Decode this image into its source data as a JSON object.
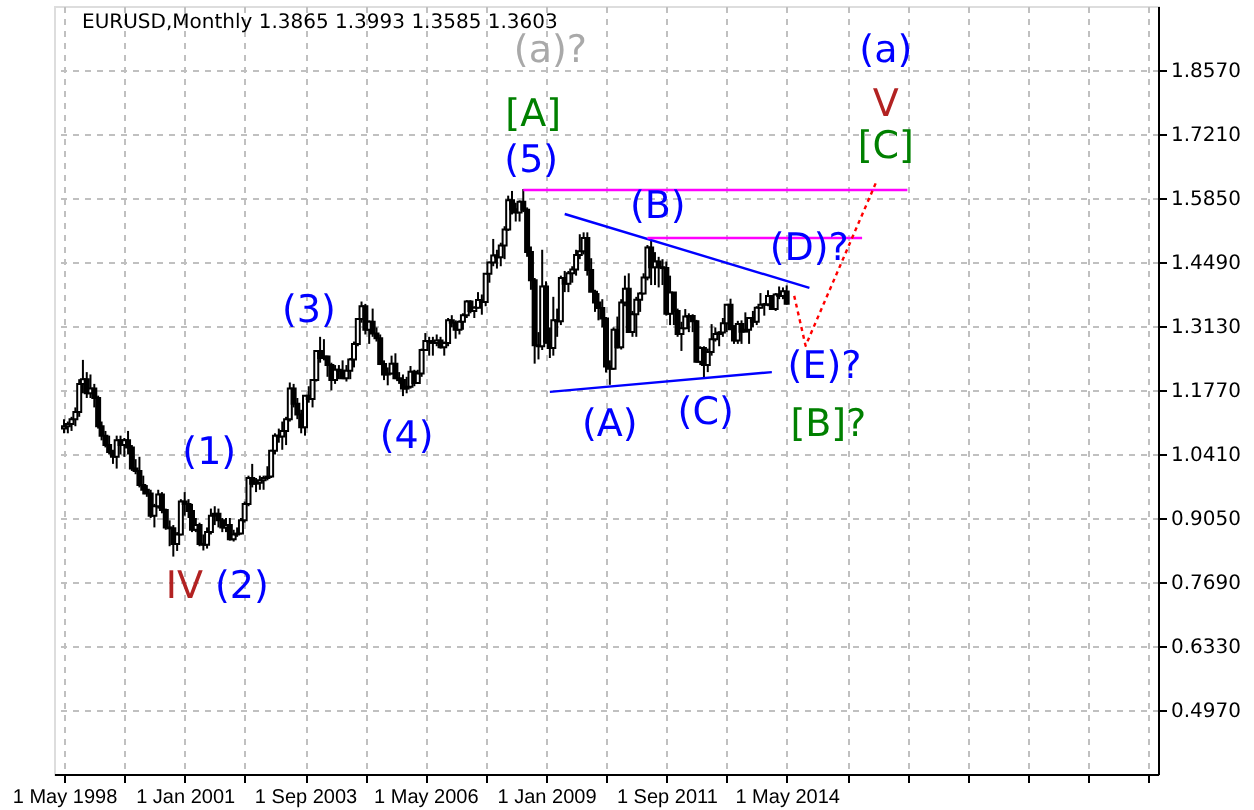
{
  "chart_data": {
    "type": "candlestick",
    "title": "EURUSD,Monthly  1.3865 1.3993 1.3585 1.3603",
    "x": [
      "1998-05",
      "1998-06",
      "1998-07",
      "1998-08",
      "1998-09",
      "1998-10",
      "1998-11",
      "1998-12",
      "1999-01",
      "1999-02",
      "1999-03",
      "1999-04",
      "1999-05",
      "1999-06",
      "1999-07",
      "1999-08",
      "1999-09",
      "1999-10",
      "1999-11",
      "1999-12",
      "2000-01",
      "2000-02",
      "2000-03",
      "2000-04",
      "2000-05",
      "2000-06",
      "2000-07",
      "2000-08",
      "2000-09",
      "2000-10",
      "2000-11",
      "2000-12",
      "2001-01",
      "2001-02",
      "2001-03",
      "2001-04",
      "2001-05",
      "2001-06",
      "2001-07",
      "2001-08",
      "2001-09",
      "2001-10",
      "2001-11",
      "2001-12",
      "2002-01",
      "2002-02",
      "2002-03",
      "2002-04",
      "2002-05",
      "2002-06",
      "2002-07",
      "2002-08",
      "2002-09",
      "2002-10",
      "2002-11",
      "2002-12",
      "2003-01",
      "2003-02",
      "2003-03",
      "2003-04",
      "2003-05",
      "2003-06",
      "2003-07",
      "2003-08",
      "2003-09",
      "2003-10",
      "2003-11",
      "2003-12",
      "2004-01",
      "2004-02",
      "2004-03",
      "2004-04",
      "2004-05",
      "2004-06",
      "2004-07",
      "2004-08",
      "2004-09",
      "2004-10",
      "2004-11",
      "2004-12",
      "2005-01",
      "2005-02",
      "2005-03",
      "2005-04",
      "2005-05",
      "2005-06",
      "2005-07",
      "2005-08",
      "2005-09",
      "2005-10",
      "2005-11",
      "2005-12",
      "2006-01",
      "2006-02",
      "2006-03",
      "2006-04",
      "2006-05",
      "2006-06",
      "2006-07",
      "2006-08",
      "2006-09",
      "2006-10",
      "2006-11",
      "2006-12",
      "2007-01",
      "2007-02",
      "2007-03",
      "2007-04",
      "2007-05",
      "2007-06",
      "2007-07",
      "2007-08",
      "2007-09",
      "2007-10",
      "2007-11",
      "2007-12",
      "2008-01",
      "2008-02",
      "2008-03",
      "2008-04",
      "2008-05",
      "2008-06",
      "2008-07",
      "2008-08",
      "2008-09",
      "2008-10",
      "2008-11",
      "2008-12",
      "2009-01",
      "2009-02",
      "2009-03",
      "2009-04",
      "2009-05",
      "2009-06",
      "2009-07",
      "2009-08",
      "2009-09",
      "2009-10",
      "2009-11",
      "2009-12",
      "2010-01",
      "2010-02",
      "2010-03",
      "2010-04",
      "2010-05",
      "2010-06",
      "2010-07",
      "2010-08",
      "2010-09",
      "2010-10",
      "2010-11",
      "2010-12",
      "2011-01",
      "2011-02",
      "2011-03",
      "2011-04",
      "2011-05",
      "2011-06",
      "2011-07",
      "2011-08",
      "2011-09",
      "2011-10",
      "2011-11",
      "2011-12",
      "2012-01",
      "2012-02",
      "2012-03",
      "2012-04",
      "2012-05",
      "2012-06",
      "2012-07",
      "2012-08",
      "2012-09",
      "2012-10",
      "2012-11",
      "2012-12",
      "2013-01",
      "2013-02",
      "2013-03",
      "2013-04",
      "2013-05",
      "2013-06",
      "2013-07",
      "2013-08",
      "2013-09",
      "2013-10",
      "2013-11",
      "2013-12",
      "2014-01",
      "2014-02",
      "2014-03",
      "2014-04",
      "2014-05"
    ],
    "ohlc": [
      [
        1.095,
        1.115,
        1.085,
        1.1
      ],
      [
        1.1,
        1.11,
        1.085,
        1.105
      ],
      [
        1.105,
        1.12,
        1.09,
        1.115
      ],
      [
        1.115,
        1.14,
        1.1,
        1.13
      ],
      [
        1.13,
        1.2,
        1.12,
        1.19
      ],
      [
        1.19,
        1.241,
        1.17,
        1.2
      ],
      [
        1.2,
        1.215,
        1.16,
        1.17
      ],
      [
        1.17,
        1.21,
        1.16,
        1.18
      ],
      [
        1.18,
        1.19,
        1.14,
        1.16
      ],
      [
        1.16,
        1.165,
        1.095,
        1.1
      ],
      [
        1.1,
        1.11,
        1.07,
        1.08
      ],
      [
        1.08,
        1.09,
        1.055,
        1.06
      ],
      [
        1.06,
        1.08,
        1.04,
        1.045
      ],
      [
        1.045,
        1.05,
        1.02,
        1.035
      ],
      [
        1.035,
        1.08,
        1.01,
        1.07
      ],
      [
        1.07,
        1.08,
        1.04,
        1.06
      ],
      [
        1.06,
        1.075,
        1.035,
        1.07
      ],
      [
        1.07,
        1.09,
        1.04,
        1.055
      ],
      [
        1.055,
        1.06,
        1.005,
        1.01
      ],
      [
        1.01,
        1.03,
        0.998,
        1.005
      ],
      [
        1.005,
        1.035,
        0.97,
        0.975
      ],
      [
        0.975,
        0.995,
        0.955,
        0.965
      ],
      [
        0.965,
        0.975,
        0.95,
        0.957
      ],
      [
        0.957,
        0.965,
        0.905,
        0.91
      ],
      [
        0.91,
        0.935,
        0.885,
        0.93
      ],
      [
        0.93,
        0.965,
        0.925,
        0.955
      ],
      [
        0.955,
        0.96,
        0.915,
        0.922
      ],
      [
        0.922,
        0.925,
        0.88,
        0.885
      ],
      [
        0.885,
        0.9,
        0.845,
        0.883
      ],
      [
        0.883,
        0.89,
        0.823,
        0.85
      ],
      [
        0.85,
        0.875,
        0.835,
        0.87
      ],
      [
        0.87,
        0.945,
        0.868,
        0.94
      ],
      [
        0.94,
        0.96,
        0.91,
        0.935
      ],
      [
        0.935,
        0.945,
        0.905,
        0.92
      ],
      [
        0.92,
        0.935,
        0.875,
        0.88
      ],
      [
        0.88,
        0.905,
        0.875,
        0.89
      ],
      [
        0.89,
        0.895,
        0.845,
        0.85
      ],
      [
        0.85,
        0.87,
        0.836,
        0.848
      ],
      [
        0.848,
        0.885,
        0.84,
        0.875
      ],
      [
        0.875,
        0.925,
        0.87,
        0.91
      ],
      [
        0.91,
        0.93,
        0.89,
        0.914
      ],
      [
        0.914,
        0.925,
        0.885,
        0.9
      ],
      [
        0.9,
        0.905,
        0.875,
        0.885
      ],
      [
        0.885,
        0.905,
        0.875,
        0.89
      ],
      [
        0.89,
        0.905,
        0.857,
        0.86
      ],
      [
        0.86,
        0.88,
        0.855,
        0.87
      ],
      [
        0.87,
        0.885,
        0.865,
        0.872
      ],
      [
        0.872,
        0.905,
        0.87,
        0.9
      ],
      [
        0.9,
        0.94,
        0.895,
        0.935
      ],
      [
        0.935,
        0.995,
        0.93,
        0.99
      ],
      [
        0.99,
        1.02,
        0.97,
        0.978
      ],
      [
        0.978,
        0.99,
        0.96,
        0.98
      ],
      [
        0.98,
        0.995,
        0.965,
        0.985
      ],
      [
        0.985,
        0.995,
        0.965,
        0.99
      ],
      [
        0.99,
        1.015,
        0.985,
        0.993
      ],
      [
        0.993,
        1.05,
        0.99,
        1.048
      ],
      [
        1.048,
        1.085,
        1.04,
        1.08
      ],
      [
        1.08,
        1.095,
        1.065,
        1.078
      ],
      [
        1.078,
        1.11,
        1.05,
        1.09
      ],
      [
        1.09,
        1.12,
        1.06,
        1.115
      ],
      [
        1.115,
        1.193,
        1.11,
        1.18
      ],
      [
        1.18,
        1.19,
        1.14,
        1.148
      ],
      [
        1.148,
        1.16,
        1.115,
        1.125
      ],
      [
        1.125,
        1.135,
        1.085,
        1.098
      ],
      [
        1.098,
        1.165,
        1.08,
        1.165
      ],
      [
        1.165,
        1.185,
        1.15,
        1.158
      ],
      [
        1.158,
        1.2,
        1.14,
        1.198
      ],
      [
        1.198,
        1.262,
        1.195,
        1.26
      ],
      [
        1.26,
        1.29,
        1.235,
        1.245
      ],
      [
        1.245,
        1.285,
        1.24,
        1.248
      ],
      [
        1.248,
        1.25,
        1.205,
        1.23
      ],
      [
        1.23,
        1.235,
        1.176,
        1.198
      ],
      [
        1.198,
        1.23,
        1.19,
        1.22
      ],
      [
        1.22,
        1.23,
        1.2,
        1.218
      ],
      [
        1.218,
        1.24,
        1.2,
        1.202
      ],
      [
        1.202,
        1.23,
        1.195,
        1.218
      ],
      [
        1.218,
        1.245,
        1.2,
        1.242
      ],
      [
        1.242,
        1.28,
        1.225,
        1.275
      ],
      [
        1.275,
        1.33,
        1.27,
        1.328
      ],
      [
        1.328,
        1.365,
        1.32,
        1.355
      ],
      [
        1.355,
        1.36,
        1.295,
        1.305
      ],
      [
        1.305,
        1.325,
        1.275,
        1.322
      ],
      [
        1.322,
        1.35,
        1.29,
        1.297
      ],
      [
        1.297,
        1.31,
        1.28,
        1.287
      ],
      [
        1.287,
        1.295,
        1.23,
        1.232
      ],
      [
        1.232,
        1.24,
        1.198,
        1.21
      ],
      [
        1.21,
        1.225,
        1.187,
        1.212
      ],
      [
        1.212,
        1.25,
        1.21,
        1.233
      ],
      [
        1.233,
        1.255,
        1.2,
        1.202
      ],
      [
        1.202,
        1.215,
        1.19,
        1.198
      ],
      [
        1.198,
        1.21,
        1.164,
        1.18
      ],
      [
        1.18,
        1.205,
        1.17,
        1.184
      ],
      [
        1.184,
        1.228,
        1.18,
        1.216
      ],
      [
        1.216,
        1.22,
        1.185,
        1.192
      ],
      [
        1.192,
        1.22,
        1.19,
        1.212
      ],
      [
        1.212,
        1.265,
        1.205,
        1.262
      ],
      [
        1.262,
        1.298,
        1.26,
        1.281
      ],
      [
        1.281,
        1.29,
        1.25,
        1.28
      ],
      [
        1.28,
        1.29,
        1.25,
        1.277
      ],
      [
        1.277,
        1.295,
        1.27,
        1.282
      ],
      [
        1.282,
        1.29,
        1.265,
        1.268
      ],
      [
        1.268,
        1.28,
        1.25,
        1.277
      ],
      [
        1.277,
        1.33,
        1.27,
        1.325
      ],
      [
        1.325,
        1.336,
        1.31,
        1.32
      ],
      [
        1.32,
        1.325,
        1.286,
        1.305
      ],
      [
        1.305,
        1.325,
        1.295,
        1.322
      ],
      [
        1.322,
        1.34,
        1.305,
        1.336
      ],
      [
        1.336,
        1.368,
        1.33,
        1.365
      ],
      [
        1.365,
        1.368,
        1.34,
        1.345
      ],
      [
        1.345,
        1.355,
        1.33,
        1.352
      ],
      [
        1.352,
        1.385,
        1.35,
        1.368
      ],
      [
        1.368,
        1.38,
        1.337,
        1.364
      ],
      [
        1.364,
        1.425,
        1.355,
        1.424
      ],
      [
        1.424,
        1.45,
        1.405,
        1.448
      ],
      [
        1.448,
        1.498,
        1.44,
        1.463
      ],
      [
        1.463,
        1.475,
        1.435,
        1.459
      ],
      [
        1.459,
        1.49,
        1.44,
        1.484
      ],
      [
        1.484,
        1.525,
        1.455,
        1.518
      ],
      [
        1.518,
        1.59,
        1.515,
        1.58
      ],
      [
        1.58,
        1.6,
        1.55,
        1.561
      ],
      [
        1.561,
        1.575,
        1.535,
        1.554
      ],
      [
        1.554,
        1.58,
        1.535,
        1.577
      ],
      [
        1.577,
        1.604,
        1.555,
        1.56
      ],
      [
        1.56,
        1.565,
        1.46,
        1.47
      ],
      [
        1.47,
        1.482,
        1.39,
        1.41
      ],
      [
        1.41,
        1.415,
        1.233,
        1.272
      ],
      [
        1.272,
        1.3,
        1.242,
        1.27
      ],
      [
        1.27,
        1.475,
        1.262,
        1.397
      ],
      [
        1.397,
        1.408,
        1.275,
        1.28
      ],
      [
        1.28,
        1.31,
        1.245,
        1.266
      ],
      [
        1.266,
        1.375,
        1.25,
        1.325
      ],
      [
        1.325,
        1.35,
        1.29,
        1.323
      ],
      [
        1.323,
        1.42,
        1.315,
        1.415
      ],
      [
        1.415,
        1.43,
        1.385,
        1.403
      ],
      [
        1.403,
        1.43,
        1.385,
        1.425
      ],
      [
        1.425,
        1.44,
        1.405,
        1.433
      ],
      [
        1.433,
        1.475,
        1.42,
        1.464
      ],
      [
        1.464,
        1.508,
        1.455,
        1.472
      ],
      [
        1.472,
        1.512,
        1.465,
        1.5
      ],
      [
        1.5,
        1.512,
        1.42,
        1.432
      ],
      [
        1.432,
        1.457,
        1.385,
        1.386
      ],
      [
        1.386,
        1.39,
        1.343,
        1.363
      ],
      [
        1.363,
        1.383,
        1.325,
        1.351
      ],
      [
        1.351,
        1.37,
        1.31,
        1.329
      ],
      [
        1.329,
        1.332,
        1.214,
        1.227
      ],
      [
        1.227,
        1.24,
        1.188,
        1.222
      ],
      [
        1.222,
        1.31,
        1.22,
        1.305
      ],
      [
        1.305,
        1.333,
        1.265,
        1.268
      ],
      [
        1.268,
        1.37,
        1.263,
        1.363
      ],
      [
        1.363,
        1.42,
        1.355,
        1.392
      ],
      [
        1.392,
        1.425,
        1.3,
        1.3
      ],
      [
        1.3,
        1.345,
        1.29,
        1.338
      ],
      [
        1.338,
        1.375,
        1.29,
        1.369
      ],
      [
        1.369,
        1.385,
        1.343,
        1.382
      ],
      [
        1.382,
        1.425,
        1.38,
        1.416
      ],
      [
        1.416,
        1.485,
        1.41,
        1.48
      ],
      [
        1.48,
        1.494,
        1.4,
        1.438
      ],
      [
        1.438,
        1.47,
        1.4,
        1.45
      ],
      [
        1.45,
        1.46,
        1.395,
        1.438
      ],
      [
        1.438,
        1.455,
        1.4,
        1.436
      ],
      [
        1.436,
        1.45,
        1.335,
        1.339
      ],
      [
        1.339,
        1.42,
        1.315,
        1.384
      ],
      [
        1.384,
        1.385,
        1.315,
        1.345
      ],
      [
        1.345,
        1.35,
        1.29,
        1.296
      ],
      [
        1.296,
        1.322,
        1.26,
        1.308
      ],
      [
        1.308,
        1.349,
        1.306,
        1.333
      ],
      [
        1.333,
        1.34,
        1.3,
        1.334
      ],
      [
        1.334,
        1.338,
        1.3,
        1.323
      ],
      [
        1.323,
        1.326,
        1.235,
        1.237
      ],
      [
        1.237,
        1.27,
        1.23,
        1.266
      ],
      [
        1.266,
        1.27,
        1.204,
        1.23
      ],
      [
        1.23,
        1.265,
        1.215,
        1.258
      ],
      [
        1.258,
        1.317,
        1.25,
        1.285
      ],
      [
        1.285,
        1.31,
        1.28,
        1.296
      ],
      [
        1.296,
        1.302,
        1.27,
        1.299
      ],
      [
        1.299,
        1.33,
        1.29,
        1.319
      ],
      [
        1.319,
        1.36,
        1.3,
        1.358
      ],
      [
        1.358,
        1.371,
        1.305,
        1.306
      ],
      [
        1.306,
        1.315,
        1.275,
        1.282
      ],
      [
        1.282,
        1.324,
        1.275,
        1.317
      ],
      [
        1.317,
        1.325,
        1.275,
        1.301
      ],
      [
        1.301,
        1.342,
        1.3,
        1.305
      ],
      [
        1.305,
        1.33,
        1.275,
        1.33
      ],
      [
        1.33,
        1.345,
        1.31,
        1.322
      ],
      [
        1.322,
        1.355,
        1.315,
        1.352
      ],
      [
        1.352,
        1.383,
        1.35,
        1.358
      ],
      [
        1.358,
        1.362,
        1.335,
        1.359
      ],
      [
        1.359,
        1.389,
        1.355,
        1.377
      ],
      [
        1.377,
        1.378,
        1.348,
        1.349
      ],
      [
        1.349,
        1.383,
        1.345,
        1.38
      ],
      [
        1.38,
        1.397,
        1.37,
        1.377
      ],
      [
        1.377,
        1.395,
        1.37,
        1.387
      ],
      [
        1.3865,
        1.3993,
        1.3585,
        1.3603
      ]
    ],
    "series": [
      {
        "type": "line",
        "color": "#0000ff",
        "line_style": "solid",
        "x": [
          "2009-06",
          "2014-11"
        ],
        "values": [
          1.551,
          1.394
        ]
      },
      {
        "type": "line",
        "color": "#0000ff",
        "line_style": "solid",
        "x": [
          "2009-02",
          "2014-01"
        ],
        "values": [
          1.173,
          1.215
        ]
      },
      {
        "type": "line",
        "color": "#ff00ff",
        "line_style": "solid",
        "x": [
          "2008-07",
          "2017-01"
        ],
        "values": [
          1.602,
          1.602
        ]
      },
      {
        "type": "line",
        "color": "#ff00ff",
        "line_style": "solid",
        "x": [
          "2011-04",
          "2016-01"
        ],
        "values": [
          1.5,
          1.5
        ]
      },
      {
        "type": "line",
        "color": "#ff0000",
        "line_style": "dotted",
        "x": [
          "2014-07",
          "2014-10",
          "2016-05"
        ],
        "values": [
          1.377,
          1.271,
          1.623
        ]
      }
    ],
    "annotations": [
      "(a)?",
      "[A]",
      "(5)",
      "(3)",
      "(4)",
      "(1)",
      "IV",
      "(2)",
      "(A)",
      "(B)",
      "(C)",
      "(D)?",
      "(E)?",
      "[B]?",
      "(a)",
      "V",
      "[C]"
    ],
    "xlim": [
      "1998-05",
      "2022-05"
    ],
    "xticks": [
      {
        "value": "1998-05",
        "label": "1 May 1998"
      },
      {
        "value": "1999-09",
        "label": null
      },
      {
        "value": "2001-01",
        "label": "1 Jan 2001"
      },
      {
        "value": "2002-05",
        "label": null
      },
      {
        "value": "2003-09",
        "label": "1 Sep 2003"
      },
      {
        "value": "2005-01",
        "label": null
      },
      {
        "value": "2006-05",
        "label": "1 May 2006"
      },
      {
        "value": "2007-09",
        "label": null
      },
      {
        "value": "2009-01",
        "label": "1 Jan 2009"
      },
      {
        "value": "2010-05",
        "label": null
      },
      {
        "value": "2011-09",
        "label": "1 Sep 2011"
      },
      {
        "value": "2013-01",
        "label": null
      },
      {
        "value": "2014-05",
        "label": "1 May 2014"
      },
      {
        "value": "2015-09",
        "label": null
      },
      {
        "value": "2017-01",
        "label": null
      },
      {
        "value": "2018-05",
        "label": null
      },
      {
        "value": "2019-09",
        "label": null
      },
      {
        "value": "2021-01",
        "label": null
      },
      {
        "value": "2022-05",
        "label": null
      }
    ],
    "ylim": [
      0.361,
      1.993
    ],
    "yticks": [
      {
        "value": 0.497,
        "label": "0.4970"
      },
      {
        "value": 0.633,
        "label": "0.6330"
      },
      {
        "value": 0.769,
        "label": "0.7690"
      },
      {
        "value": 0.905,
        "label": "0.9050"
      },
      {
        "value": 1.041,
        "label": "1.0410"
      },
      {
        "value": 1.177,
        "label": "1.1770"
      },
      {
        "value": 1.313,
        "label": "1.3130"
      },
      {
        "value": 1.449,
        "label": "1.4490"
      },
      {
        "value": 1.585,
        "label": "1.5850"
      },
      {
        "value": 1.721,
        "label": "1.7210"
      },
      {
        "value": 1.857,
        "label": "1.8570"
      }
    ],
    "grid": true
  }
}
